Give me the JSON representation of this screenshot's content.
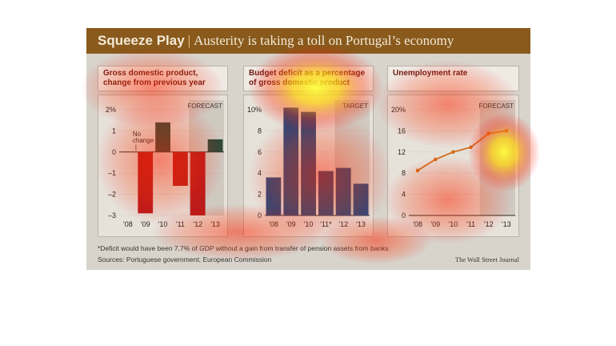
{
  "header": {
    "title_main": "Squeeze Play",
    "title_sep": "|",
    "title_sub": "Austerity is taking a toll on Portugal’s economy"
  },
  "footer": {
    "footnote": "*Deficit would have been 7.7% of GDP without a gain from transfer of pension assets from banks",
    "sources": "Sources: Portuguese government; European Commission",
    "brand": "The Wall Street Journal"
  },
  "colors": {
    "title_bg": "#8a5a1c",
    "gdp_positive": "#2f4a3a",
    "gdp_negative": "#b81c1c",
    "deficit_bar": "#2a4a7a",
    "unemployment_line": "#d46a18",
    "forecast_shade": "#cfc9c0"
  },
  "chart_data": [
    {
      "type": "bar",
      "title": "Gross domestic product, change from previous year",
      "categories": [
        "'08",
        "'09",
        "'10",
        "'11",
        "'12",
        "'13"
      ],
      "values": [
        0.0,
        -2.9,
        1.4,
        -1.6,
        -3.0,
        0.6
      ],
      "ylim": [
        -3,
        2
      ],
      "ticks": [
        "2%",
        "1",
        "0",
        "–1",
        "–2",
        "–3"
      ],
      "tick_values": [
        2,
        1,
        0,
        -1,
        -2,
        -3
      ],
      "forecast_label": "FORECAST",
      "forecast_from": "'12",
      "annotation": [
        "No",
        "change"
      ]
    },
    {
      "type": "bar",
      "title": "Budget deficit as a percentage of gross domestic product",
      "categories": [
        "'08",
        "'09",
        "'10",
        "'11*",
        "'12",
        "'13"
      ],
      "values": [
        3.6,
        10.2,
        9.8,
        4.2,
        4.5,
        3.0
      ],
      "ylim": [
        0,
        10
      ],
      "ticks": [
        "10%",
        "8",
        "6",
        "4",
        "2",
        "0"
      ],
      "tick_values": [
        10,
        8,
        6,
        4,
        2,
        0
      ],
      "forecast_label": "TARGET",
      "forecast_from": "'12"
    },
    {
      "type": "line",
      "title": "Unemployment rate",
      "categories": [
        "'08",
        "'09",
        "'10",
        "'11",
        "'12",
        "'13"
      ],
      "x": [
        2008,
        2009,
        2010,
        2011,
        2012,
        2013
      ],
      "values": [
        8.5,
        10.6,
        12.0,
        12.9,
        15.5,
        16.0
      ],
      "ylim": [
        0,
        20
      ],
      "ticks": [
        "20%",
        "16",
        "12",
        "8",
        "4",
        "0"
      ],
      "tick_values": [
        20,
        16,
        12,
        8,
        4,
        0
      ],
      "forecast_label": "FORECAST",
      "forecast_from": "'12"
    }
  ]
}
